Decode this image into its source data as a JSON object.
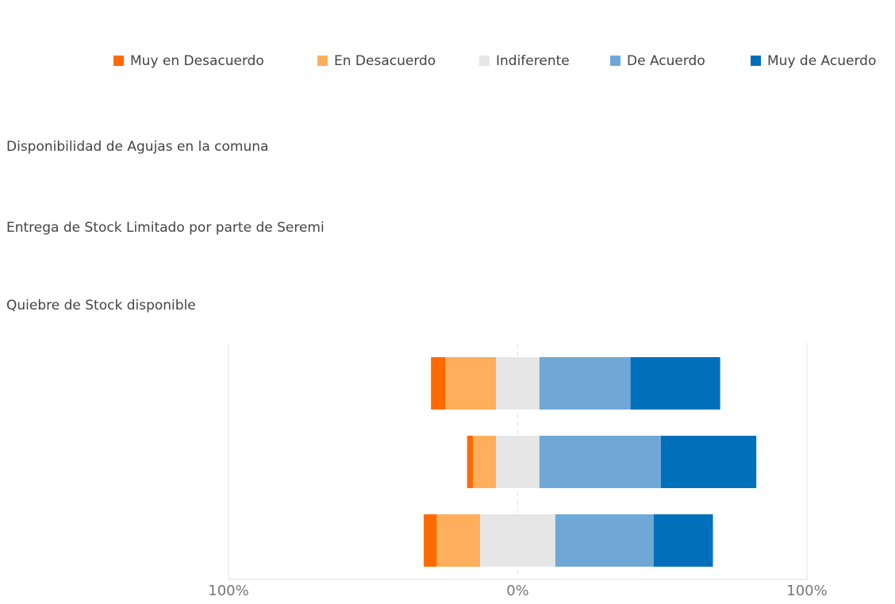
{
  "chart_data": {
    "type": "diverging_stacked_bar",
    "categories": [
      "Disponibilidad de Agujas en la comuna",
      "Entrega de Stock Limitado por parte de Seremi",
      "Quiebre de Stock disponible"
    ],
    "series": [
      {
        "name": "Muy en Desacuerdo",
        "color": "#ff6a00",
        "values": [
          5,
          2,
          4.5
        ]
      },
      {
        "name": "En Desacuerdo",
        "color": "#ffae5c",
        "values": [
          17.5,
          8,
          15
        ]
      },
      {
        "name": "Indiferente",
        "color": "#e6e6e6",
        "values": [
          15,
          15,
          26
        ]
      },
      {
        "name": "De Acuerdo",
        "color": "#6fa8d6",
        "values": [
          31.5,
          42,
          34
        ]
      },
      {
        "name": "Muy de Acuerdo",
        "color": "#0070bb",
        "values": [
          31,
          33,
          20.5
        ]
      }
    ],
    "xlim": [
      -100,
      100
    ],
    "xticks": [
      {
        "value": -100,
        "label": "100%"
      },
      {
        "value": 0,
        "label": "0%"
      },
      {
        "value": 100,
        "label": "100%"
      }
    ],
    "grid": true,
    "legend": "top"
  }
}
